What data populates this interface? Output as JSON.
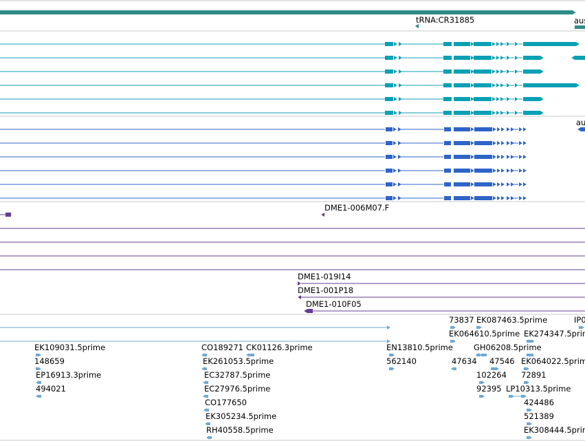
{
  "colors": {
    "divider": "#c8c8c8",
    "track1": "#2f8c87",
    "track2": "#0aa0b4",
    "track3": "#2d64c8",
    "track4": "#643c96",
    "track5": "#6ea8d2"
  },
  "track1": {
    "trna_label": "tRNA:CR31885",
    "right_label": "aus"
  },
  "track3": {
    "right_label": "au"
  },
  "track4": {
    "labels": [
      "DME1-006M07.F",
      "DME1-019I14",
      "DME1-001P18",
      "DME1-010F05"
    ]
  },
  "track5": {
    "labels": [
      "73837",
      "EK087463.5prime",
      "IP0",
      "EK064610.5prime",
      "EK274347.5prime",
      "EK109031.5prime",
      "CO189271",
      "CK01126.3prime",
      "EN13810.5prime",
      "GH06208.5prime",
      "148659",
      "EK261053.5prime",
      "562140",
      "47634",
      "47546",
      "EK064022.5prime",
      "EP16913.3prime",
      "EC32787.5prime",
      "102264",
      "72891",
      "494021",
      "EC27976.5prime",
      "92395",
      "LP10313.5prime",
      "CO177650",
      "424486",
      "EK305234.5prime",
      "521389",
      "RH40558.5prime",
      "EK308444.5prime"
    ]
  }
}
